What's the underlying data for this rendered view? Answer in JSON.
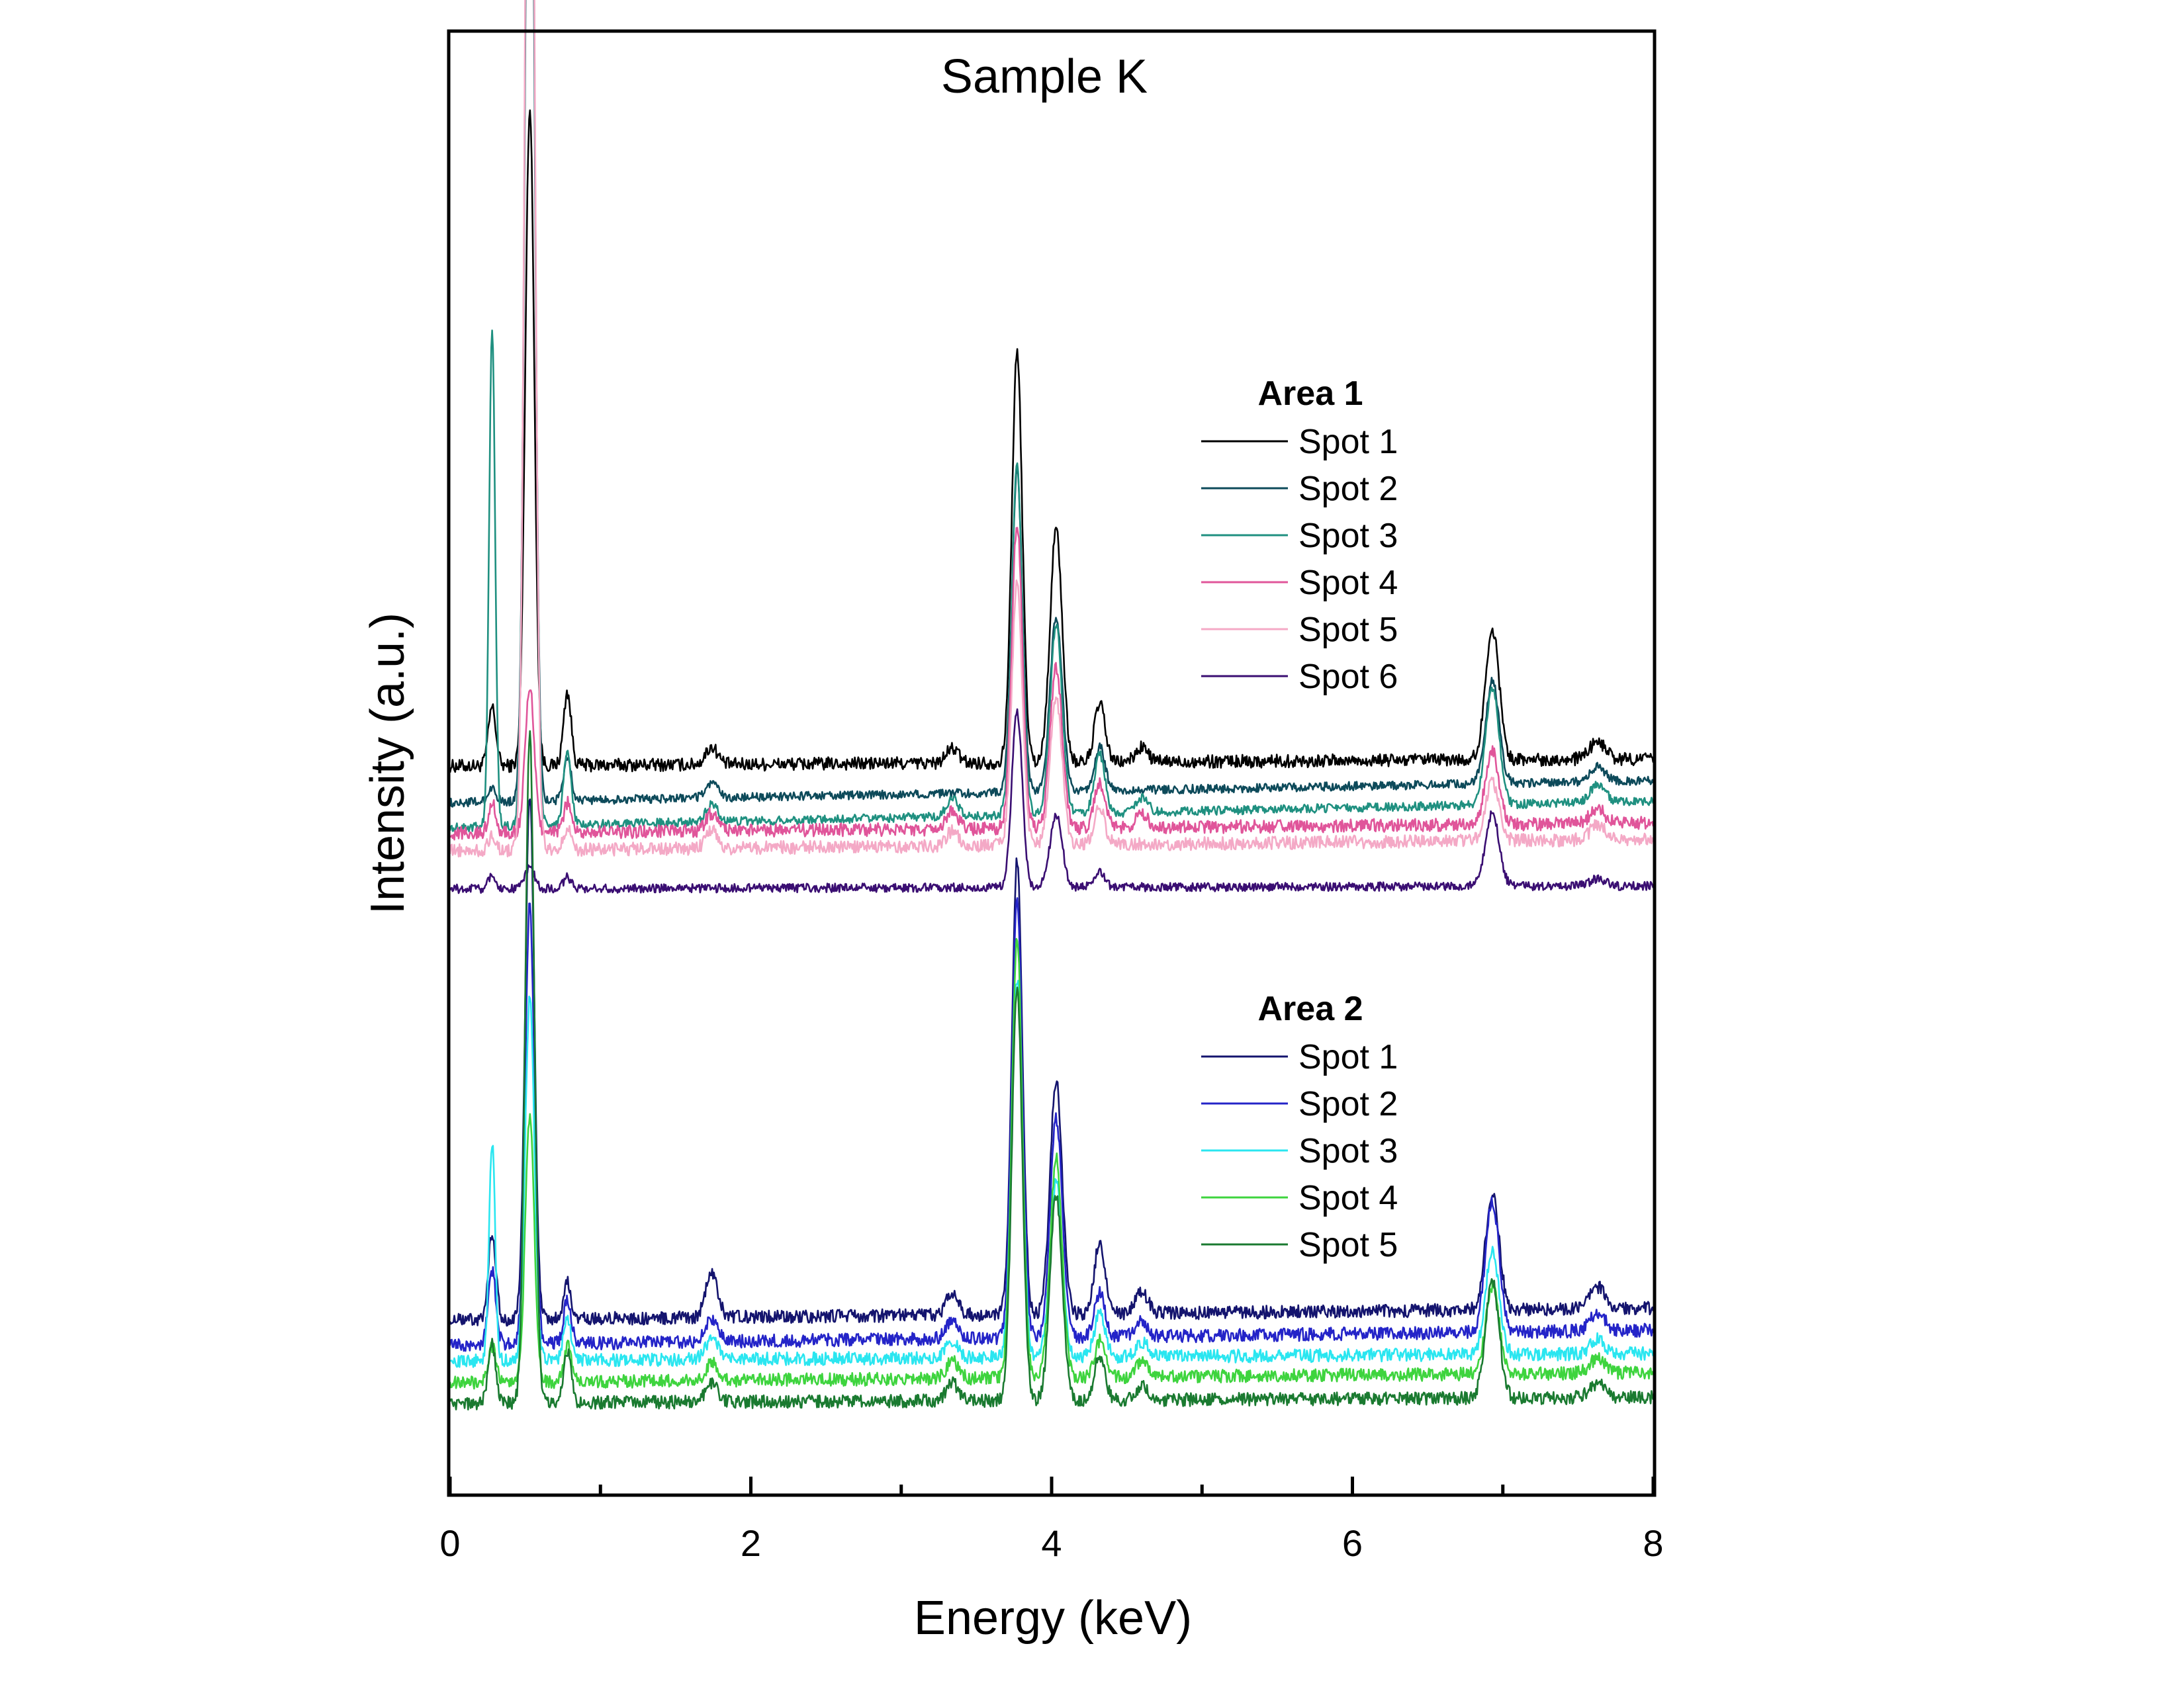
{
  "chart_data": {
    "type": "line",
    "title": "Sample K",
    "xlabel": "Energy (keV)",
    "ylabel": "Intensity (a.u.)",
    "xlim": [
      0,
      8
    ],
    "ylim": [
      0,
      100
    ],
    "x_ticks": [
      0,
      2,
      4,
      6,
      8
    ],
    "x_ticks_labels": [
      "0",
      "2",
      "4",
      "6",
      "8"
    ],
    "x_minor_ticks": [
      1,
      3,
      5,
      7
    ],
    "grid": false,
    "legend_position": "right",
    "legend_groups": [
      {
        "title": "Area 1",
        "entries": [
          "Spot 1",
          "Spot 2",
          "Spot 3",
          "Spot 4",
          "Spot 5",
          "Spot 6"
        ]
      },
      {
        "title": "Area 2",
        "entries": [
          "Spot 1",
          "Spot 2",
          "Spot 3",
          "Spot 4",
          "Spot 5"
        ]
      }
    ],
    "series": [
      {
        "group": "Area 1",
        "name": "Spot 1",
        "color": "#000000",
        "baseline_start": 49.8,
        "baseline_end": 50.3,
        "noise": 0.45,
        "peaks": [
          [
            0.28,
            4,
            0.025
          ],
          [
            0.53,
            45,
            0.03
          ],
          [
            0.78,
            5,
            0.025
          ],
          [
            1.74,
            1.2,
            0.04
          ],
          [
            3.34,
            1,
            0.04
          ],
          [
            3.77,
            28,
            0.035
          ],
          [
            4.03,
            16,
            0.04
          ],
          [
            4.32,
            4,
            0.035
          ],
          [
            4.6,
            1,
            0.04
          ],
          [
            6.93,
            9,
            0.045
          ],
          [
            7.63,
            1.2,
            0.05
          ]
        ]
      },
      {
        "group": "Area 1",
        "name": "Spot 2",
        "color": "#0d4a5a",
        "baseline_start": 47.3,
        "baseline_end": 48.8,
        "noise": 0.3,
        "peaks": [
          [
            0.28,
            1,
            0.025
          ],
          [
            0.53,
            85,
            0.03
          ],
          [
            0.78,
            3,
            0.025
          ],
          [
            1.74,
            1,
            0.04
          ],
          [
            3.77,
            22,
            0.035
          ],
          [
            4.03,
            12,
            0.04
          ],
          [
            4.32,
            3,
            0.035
          ],
          [
            6.93,
            7,
            0.045
          ],
          [
            7.63,
            1,
            0.05
          ]
        ]
      },
      {
        "group": "Area 1",
        "name": "Spot 3",
        "color": "#1f9080",
        "baseline_start": 45.6,
        "baseline_end": 47.4,
        "noise": 0.3,
        "peaks": [
          [
            0.28,
            34,
            0.02
          ],
          [
            0.53,
            92,
            0.03
          ],
          [
            0.78,
            5,
            0.025
          ],
          [
            1.74,
            1.2,
            0.04
          ],
          [
            3.34,
            1.2,
            0.04
          ],
          [
            3.77,
            24,
            0.035
          ],
          [
            4.03,
            13,
            0.04
          ],
          [
            4.32,
            4,
            0.035
          ],
          [
            4.6,
            1,
            0.04
          ],
          [
            6.93,
            8,
            0.045
          ],
          [
            7.63,
            1.2,
            0.05
          ]
        ]
      },
      {
        "group": "Area 1",
        "name": "Spot 4",
        "color": "#e0559a",
        "baseline_start": 45.2,
        "baseline_end": 45.9,
        "noise": 0.45,
        "peaks": [
          [
            0.28,
            2,
            0.025
          ],
          [
            0.53,
            10,
            0.03
          ],
          [
            0.78,
            2,
            0.025
          ],
          [
            1.74,
            1.2,
            0.04
          ],
          [
            3.34,
            1.2,
            0.04
          ],
          [
            3.77,
            21,
            0.035
          ],
          [
            4.03,
            11,
            0.04
          ],
          [
            4.32,
            3,
            0.035
          ],
          [
            4.6,
            1,
            0.04
          ],
          [
            6.93,
            5,
            0.045
          ],
          [
            7.63,
            1,
            0.05
          ]
        ]
      },
      {
        "group": "Area 1",
        "name": "Spot 5",
        "color": "#f4a9c6",
        "baseline_start": 44.0,
        "baseline_end": 44.8,
        "noise": 0.45,
        "peaks": [
          [
            0.28,
            1,
            0.025
          ],
          [
            0.53,
            99,
            0.03
          ],
          [
            0.78,
            1.5,
            0.025
          ],
          [
            1.74,
            1.2,
            0.04
          ],
          [
            3.34,
            1,
            0.04
          ],
          [
            3.77,
            18,
            0.035
          ],
          [
            4.03,
            10,
            0.04
          ],
          [
            4.32,
            2.5,
            0.035
          ],
          [
            6.93,
            4,
            0.045
          ],
          [
            7.63,
            1,
            0.05
          ]
        ]
      },
      {
        "group": "Area 1",
        "name": "Spot 6",
        "color": "#3a0e72",
        "baseline_start": 41.4,
        "baseline_end": 41.6,
        "noise": 0.3,
        "peaks": [
          [
            0.28,
            1,
            0.025
          ],
          [
            0.53,
            1.5,
            0.03
          ],
          [
            0.78,
            0.8,
            0.025
          ],
          [
            3.77,
            12,
            0.035
          ],
          [
            4.03,
            5,
            0.04
          ],
          [
            4.32,
            1,
            0.035
          ],
          [
            6.93,
            5,
            0.045
          ],
          [
            7.63,
            0.5,
            0.05
          ]
        ]
      },
      {
        "group": "Area 2",
        "name": "Spot 1",
        "color": "#14146e",
        "baseline_start": 11.9,
        "baseline_end": 12.7,
        "noise": 0.45,
        "peaks": [
          [
            0.28,
            6,
            0.025
          ],
          [
            0.53,
            36,
            0.03
          ],
          [
            0.78,
            2.5,
            0.025
          ],
          [
            1.74,
            3,
            0.04
          ],
          [
            3.34,
            1.5,
            0.04
          ],
          [
            3.77,
            31,
            0.035
          ],
          [
            4.03,
            16,
            0.04
          ],
          [
            4.32,
            5,
            0.035
          ],
          [
            4.6,
            1.5,
            0.04
          ],
          [
            6.93,
            8,
            0.045
          ],
          [
            7.63,
            1.5,
            0.05
          ]
        ]
      },
      {
        "group": "Area 2",
        "name": "Spot 2",
        "color": "#2424c8",
        "baseline_start": 10.2,
        "baseline_end": 11.2,
        "noise": 0.45,
        "peaks": [
          [
            0.28,
            5,
            0.025
          ],
          [
            0.53,
            30,
            0.03
          ],
          [
            0.78,
            3,
            0.025
          ],
          [
            1.74,
            1.5,
            0.04
          ],
          [
            3.34,
            1.2,
            0.04
          ],
          [
            3.77,
            30,
            0.035
          ],
          [
            4.03,
            15,
            0.04
          ],
          [
            4.32,
            3,
            0.035
          ],
          [
            4.6,
            1,
            0.04
          ],
          [
            6.93,
            9,
            0.045
          ],
          [
            7.63,
            1.2,
            0.05
          ]
        ]
      },
      {
        "group": "Area 2",
        "name": "Spot 3",
        "color": "#2ae6f0",
        "baseline_start": 9.1,
        "baseline_end": 9.6,
        "noise": 0.45,
        "peaks": [
          [
            0.28,
            15,
            0.02
          ],
          [
            0.53,
            25,
            0.03
          ],
          [
            0.78,
            3,
            0.025
          ],
          [
            1.74,
            1.5,
            0.04
          ],
          [
            3.34,
            1.2,
            0.04
          ],
          [
            3.77,
            26,
            0.035
          ],
          [
            4.03,
            12,
            0.04
          ],
          [
            4.32,
            3,
            0.035
          ],
          [
            4.6,
            1,
            0.04
          ],
          [
            6.93,
            7,
            0.045
          ],
          [
            7.63,
            1,
            0.05
          ]
        ]
      },
      {
        "group": "Area 2",
        "name": "Spot 4",
        "color": "#3ed43e",
        "baseline_start": 7.6,
        "baseline_end": 8.3,
        "noise": 0.45,
        "peaks": [
          [
            0.28,
            2.5,
            0.025
          ],
          [
            0.53,
            18,
            0.03
          ],
          [
            0.78,
            2.5,
            0.025
          ],
          [
            1.74,
            1.2,
            0.04
          ],
          [
            3.34,
            1.2,
            0.04
          ],
          [
            3.77,
            30,
            0.035
          ],
          [
            4.03,
            15,
            0.04
          ],
          [
            4.32,
            2.5,
            0.035
          ],
          [
            4.6,
            1,
            0.04
          ],
          [
            6.93,
            6,
            0.045
          ],
          [
            7.63,
            1,
            0.05
          ]
        ]
      },
      {
        "group": "Area 2",
        "name": "Spot 5",
        "color": "#1a7a30",
        "baseline_start": 6.2,
        "baseline_end": 6.6,
        "noise": 0.45,
        "peaks": [
          [
            0.28,
            4,
            0.025
          ],
          [
            0.53,
            46,
            0.03
          ],
          [
            0.78,
            3.5,
            0.025
          ],
          [
            1.74,
            1.2,
            0.04
          ],
          [
            3.34,
            1.2,
            0.04
          ],
          [
            3.77,
            28,
            0.035
          ],
          [
            4.03,
            14,
            0.04
          ],
          [
            4.32,
            3,
            0.035
          ],
          [
            4.6,
            1,
            0.04
          ],
          [
            6.93,
            8,
            0.045
          ],
          [
            7.63,
            1,
            0.05
          ]
        ]
      }
    ]
  }
}
